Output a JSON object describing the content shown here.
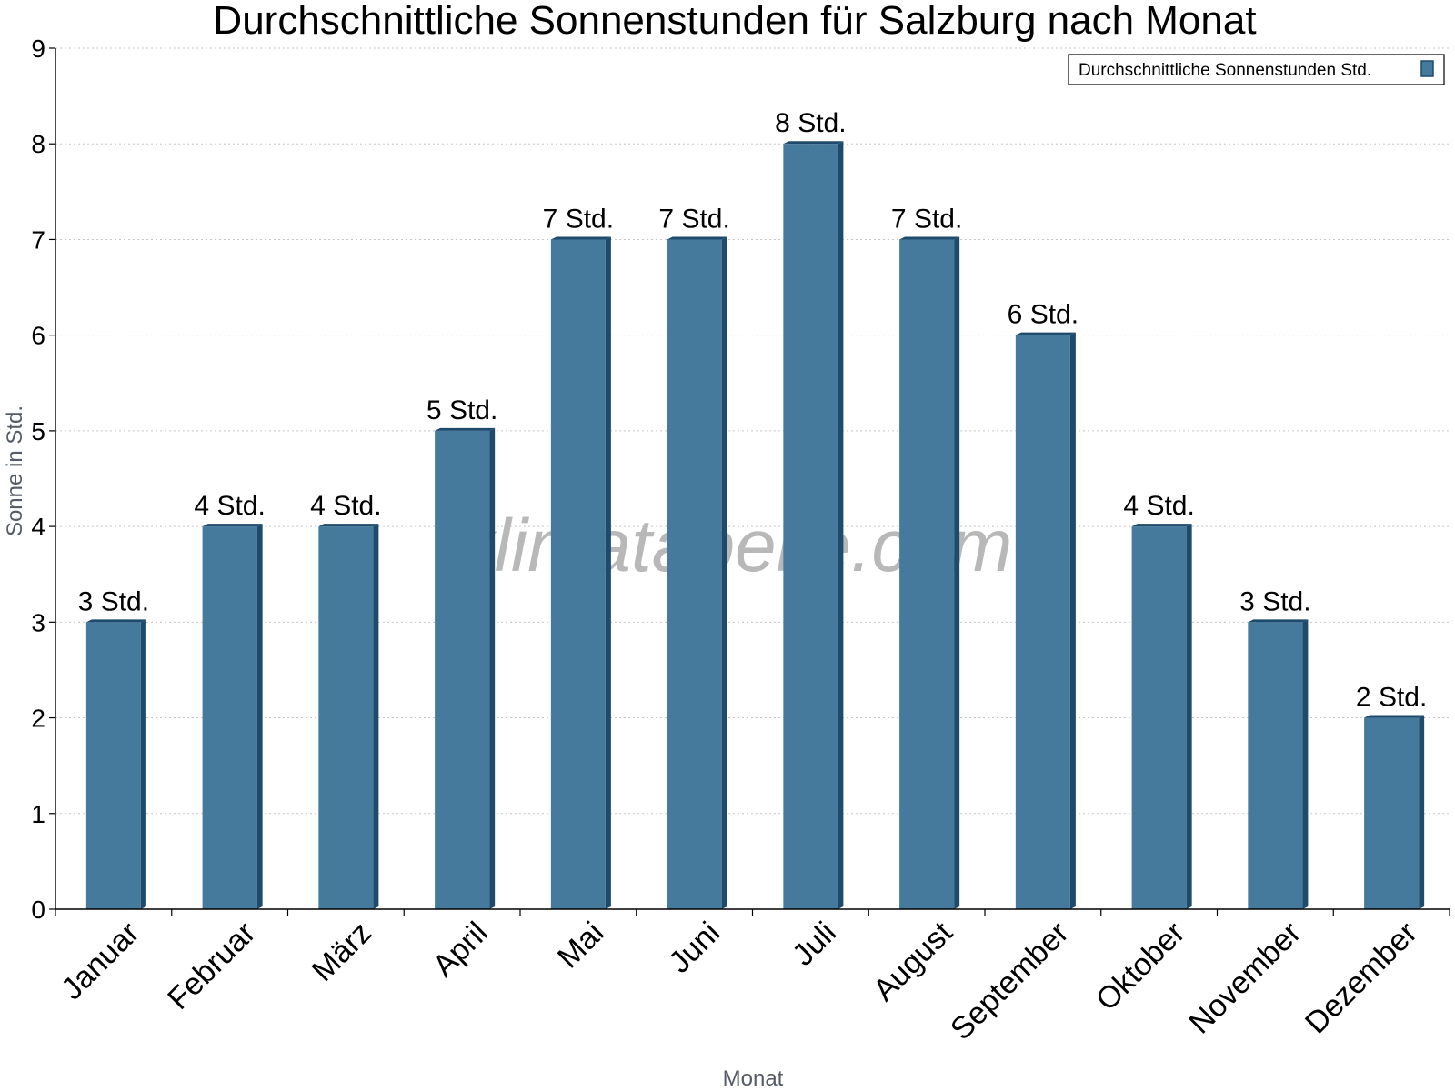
{
  "chart_data": {
    "type": "bar",
    "title": "Durchschnittliche Sonnenstunden für Salzburg nach Monat",
    "xlabel": "Monat",
    "ylabel": "Sonne in Std.",
    "categories": [
      "Januar",
      "Februar",
      "März",
      "April",
      "Mai",
      "Juni",
      "Juli",
      "August",
      "September",
      "Oktober",
      "November",
      "Dezember"
    ],
    "series": [
      {
        "name": "Durchschnittliche Sonnenstunden Std.",
        "values": [
          3,
          4,
          4,
          5,
          7,
          7,
          8,
          7,
          6,
          4,
          3,
          2
        ],
        "labels": [
          "3 Std.",
          "4 Std.",
          "4 Std.",
          "5 Std.",
          "7 Std.",
          "7 Std.",
          "8 Std.",
          "7 Std.",
          "6 Std.",
          "4 Std.",
          "3 Std.",
          "2 Std."
        ],
        "color": "#467a9c",
        "edge_color": "#1e4a6c"
      }
    ],
    "ylim": [
      0,
      9
    ],
    "yticks": [
      0,
      1,
      2,
      3,
      4,
      5,
      6,
      7,
      8,
      9
    ],
    "grid": true,
    "legend_position": "top-right"
  },
  "watermark": "klimatabelle.com"
}
